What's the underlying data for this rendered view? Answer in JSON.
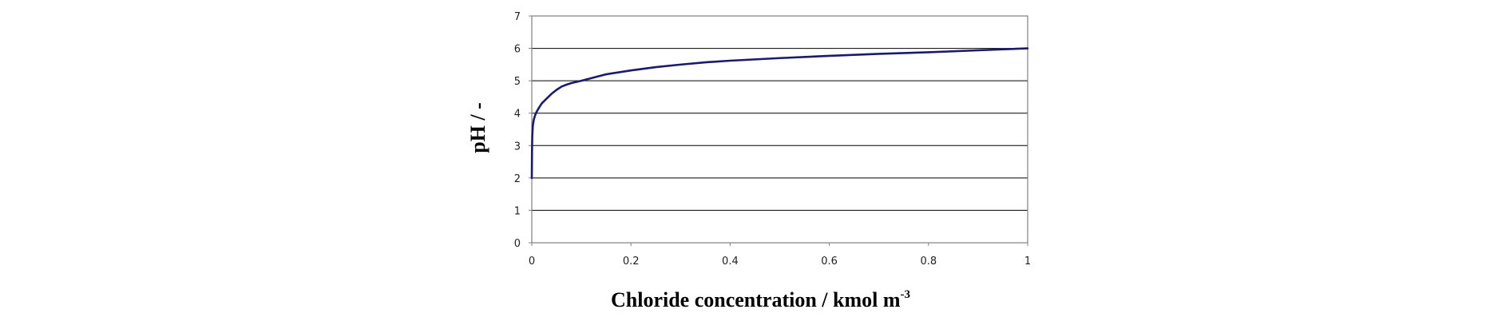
{
  "chart_data": {
    "type": "line",
    "title": "",
    "xlabel": "Chloride concentration / kmol m",
    "xlabel_superscript": "-3",
    "ylabel": "pH / -",
    "xlim": [
      0,
      1
    ],
    "ylim": [
      0,
      7
    ],
    "xticks": [
      "0",
      "0.2",
      "0.4",
      "0.6",
      "0.8",
      "1"
    ],
    "yticks": [
      "0",
      "1",
      "2",
      "3",
      "4",
      "5",
      "6",
      "7"
    ],
    "grid": "horizontal",
    "legend": "none",
    "line_color": "#1a1a6e",
    "series": [
      {
        "x": [
          0.0,
          0.0005,
          0.001,
          0.002,
          0.004,
          0.007,
          0.01,
          0.015,
          0.02,
          0.03,
          0.04,
          0.05,
          0.06,
          0.07,
          0.08,
          0.1,
          0.12,
          0.15,
          0.2,
          0.25,
          0.3,
          0.35,
          0.4,
          0.5,
          0.6,
          0.7,
          0.8,
          0.9,
          1.0
        ],
        "y": [
          2.0,
          2.9,
          3.3,
          3.6,
          3.8,
          3.95,
          4.05,
          4.18,
          4.3,
          4.45,
          4.6,
          4.72,
          4.82,
          4.88,
          4.93,
          5.0,
          5.08,
          5.2,
          5.32,
          5.42,
          5.5,
          5.57,
          5.62,
          5.7,
          5.77,
          5.83,
          5.88,
          5.94,
          6.0
        ]
      }
    ]
  }
}
